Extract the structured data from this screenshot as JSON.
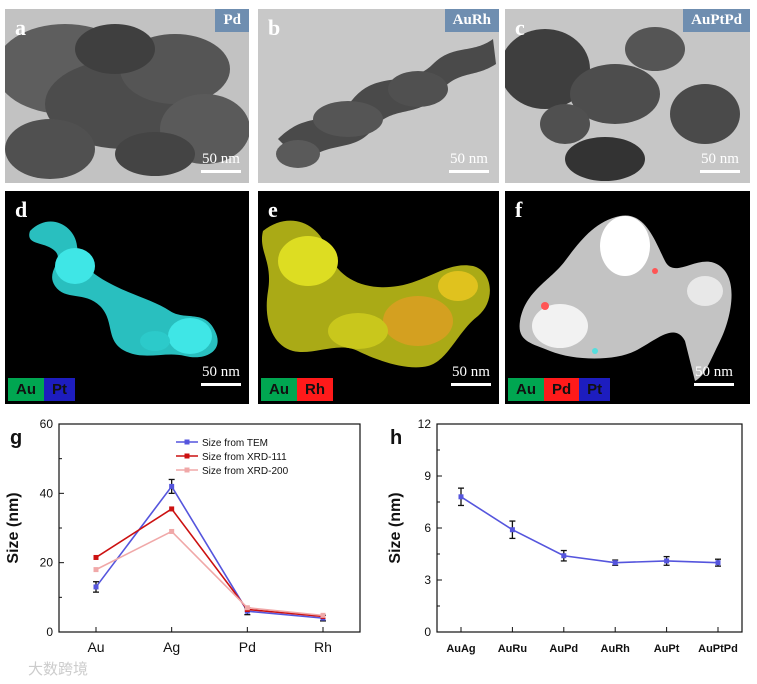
{
  "tem_panels": [
    {
      "letter": "a",
      "element": "Pd",
      "scale": "50 nm"
    },
    {
      "letter": "b",
      "element": "AuRh",
      "scale": "50 nm"
    },
    {
      "letter": "c",
      "element": "AuPtPd",
      "scale": "50 nm"
    }
  ],
  "eds_panels": [
    {
      "letter": "d",
      "scale": "50 nm",
      "legend": [
        {
          "label": "Au",
          "color": "#00a651"
        },
        {
          "label": "Pt",
          "color": "#1d1dbf"
        }
      ]
    },
    {
      "letter": "e",
      "scale": "50 nm",
      "legend": [
        {
          "label": "Au",
          "color": "#00a651"
        },
        {
          "label": "Rh",
          "color": "#ff1a1a"
        }
      ]
    },
    {
      "letter": "f",
      "scale": "50 nm",
      "legend": [
        {
          "label": "Au",
          "color": "#00a651"
        },
        {
          "label": "Pd",
          "color": "#ff1a1a"
        },
        {
          "label": "Pt",
          "color": "#1d1dbf"
        }
      ]
    }
  ],
  "chart_data": [
    {
      "panel": "g",
      "type": "line",
      "categories": [
        "Au",
        "Ag",
        "Pd",
        "Rh"
      ],
      "ylabel": "Size (nm)",
      "ylim": [
        0,
        60
      ],
      "yticks": [
        "0",
        "20",
        "40",
        "60"
      ],
      "series": [
        {
          "name": "Size from TEM",
          "color": "#5555dd",
          "values": [
            13,
            42,
            6,
            4
          ],
          "errors": [
            1.5,
            2,
            1,
            0.8
          ]
        },
        {
          "name": "Size from XRD-111",
          "color": "#cc1111",
          "values": [
            21.5,
            35.5,
            6.5,
            4.5
          ]
        },
        {
          "name": "Size from XRD-200",
          "color": "#f0a8a8",
          "values": [
            18,
            29,
            7,
            4.8
          ]
        }
      ]
    },
    {
      "panel": "h",
      "type": "line",
      "categories": [
        "AuAg",
        "AuRu",
        "AuPd",
        "AuRh",
        "AuPt",
        "AuPtPd"
      ],
      "ylabel": "Size (nm)",
      "ylim": [
        0,
        12
      ],
      "yticks": [
        "0",
        "3",
        "6",
        "9",
        "12"
      ],
      "series": [
        {
          "name": "Size",
          "color": "#5555dd",
          "values": [
            7.8,
            5.9,
            4.4,
            4.0,
            4.1,
            4.0
          ],
          "errors": [
            0.5,
            0.5,
            0.3,
            0.15,
            0.25,
            0.2
          ]
        }
      ]
    }
  ],
  "watermark": "大数跨境"
}
